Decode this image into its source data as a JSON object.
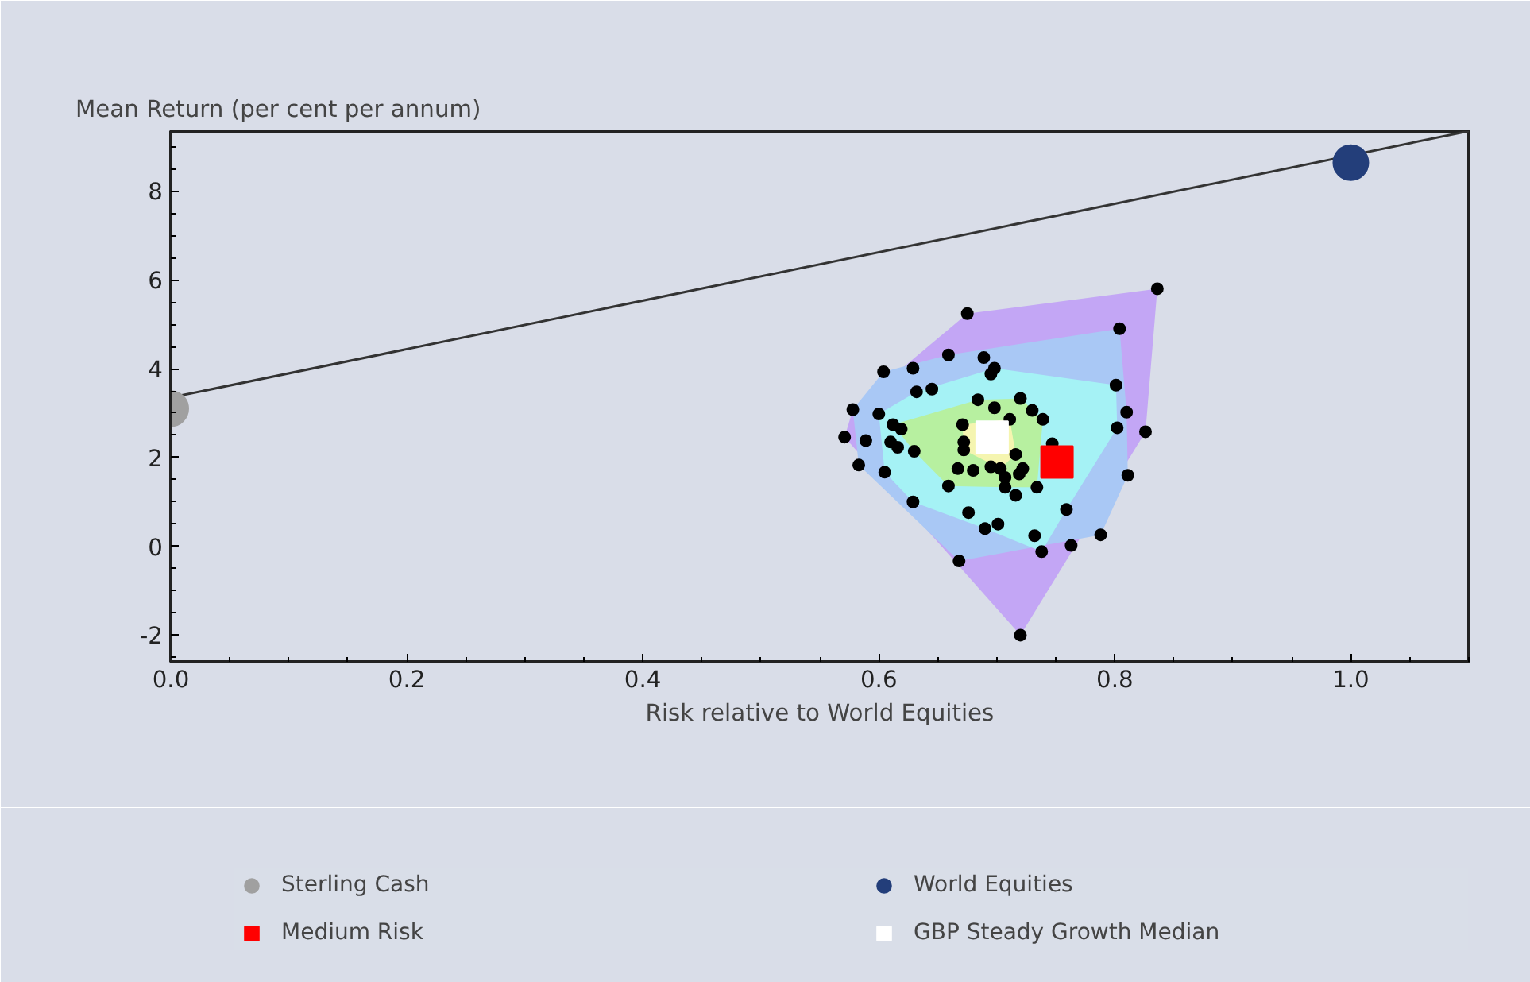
{
  "chart_data": {
    "type": "scatter",
    "xlabel": "Risk relative to World Equities",
    "ylabel": "Mean Return (per cent per annum)",
    "xlim": [
      0,
      1.1
    ],
    "ylim": [
      -2.6,
      9.35
    ],
    "xticks": [
      {
        "value": 0,
        "label": "0.0"
      },
      {
        "value": 0.2,
        "label": "0.2"
      },
      {
        "value": 0.4,
        "label": "0.4"
      },
      {
        "value": 0.6,
        "label": "0.6"
      },
      {
        "value": 0.8,
        "label": "0.8"
      },
      {
        "value": 1.0,
        "label": "1.0"
      }
    ],
    "yticks": [
      -2,
      0,
      2,
      4,
      6,
      8
    ],
    "grid": false,
    "legend": "bottom",
    "series": [
      {
        "type": "area",
        "color": "#c3a6f5",
        "x": [
          0.836,
          0.675,
          0.578,
          0.571,
          0.72,
          0.826
        ],
        "values": [
          5.8,
          5.24,
          3.08,
          2.46,
          -2.0,
          2.58
        ]
      },
      {
        "type": "area",
        "color": "#a9c8f5",
        "x": [
          0.804,
          0.659,
          0.604,
          0.578,
          0.583,
          0.668,
          0.788,
          0.811,
          0.81
        ],
        "values": [
          4.9,
          4.31,
          3.93,
          3.08,
          1.83,
          -0.33,
          0.26,
          1.6,
          3.02
        ]
      },
      {
        "type": "area",
        "color": "#a5f2f5",
        "x": [
          0.698,
          0.632,
          0.6,
          0.605,
          0.629,
          0.69,
          0.738,
          0.759,
          0.802,
          0.801
        ],
        "values": [
          4.01,
          3.48,
          2.98,
          1.67,
          1.0,
          0.4,
          -0.12,
          0.83,
          2.67,
          3.63
        ]
      },
      {
        "type": "area",
        "color": "#b7f0a0",
        "x": [
          0.684,
          0.72,
          0.739,
          0.734,
          0.707,
          0.659,
          0.63,
          0.612
        ],
        "values": [
          3.3,
          3.33,
          2.86,
          1.33,
          1.33,
          1.36,
          2.14,
          2.74
        ]
      },
      {
        "type": "area",
        "color": "#f5f5b0",
        "x": [
          0.671,
          0.711,
          0.716,
          0.703,
          0.672
        ],
        "values": [
          2.74,
          2.86,
          2.07,
          1.75,
          2.17
        ]
      },
      {
        "type": "line",
        "color": "#333333",
        "marker": "none",
        "x": [
          0,
          1.1
        ],
        "values": [
          3.35,
          9.35
        ]
      },
      {
        "type": "scatter",
        "color": "#000000",
        "marker": "circle",
        "x": [
          0.836,
          0.675,
          0.804,
          0.659,
          0.689,
          0.698,
          0.695,
          0.604,
          0.629,
          0.801,
          0.632,
          0.645,
          0.684,
          0.698,
          0.72,
          0.73,
          0.739,
          0.578,
          0.6,
          0.711,
          0.81,
          0.802,
          0.826,
          0.612,
          0.619,
          0.671,
          0.571,
          0.589,
          0.61,
          0.616,
          0.63,
          0.672,
          0.672,
          0.747,
          0.716,
          0.583,
          0.605,
          0.667,
          0.68,
          0.695,
          0.703,
          0.722,
          0.719,
          0.707,
          0.659,
          0.707,
          0.716,
          0.734,
          0.629,
          0.759,
          0.676,
          0.69,
          0.701,
          0.811,
          0.732,
          0.738,
          0.763,
          0.788,
          0.668,
          0.72
        ],
        "values": [
          5.8,
          5.24,
          4.9,
          4.31,
          4.25,
          4.01,
          3.88,
          3.93,
          4.01,
          3.63,
          3.48,
          3.54,
          3.3,
          3.12,
          3.33,
          3.06,
          2.86,
          3.08,
          2.98,
          2.86,
          3.02,
          2.67,
          2.58,
          2.74,
          2.64,
          2.74,
          2.46,
          2.38,
          2.35,
          2.23,
          2.14,
          2.35,
          2.17,
          2.31,
          2.07,
          1.83,
          1.67,
          1.75,
          1.71,
          1.79,
          1.75,
          1.75,
          1.63,
          1.55,
          1.36,
          1.33,
          1.15,
          1.33,
          1.0,
          0.83,
          0.76,
          0.4,
          0.5,
          1.6,
          0.24,
          -0.12,
          0.02,
          0.26,
          -0.33,
          -2.0
        ]
      },
      {
        "type": "scatter",
        "name": "Sterling Cash",
        "color": "#a0a0a0",
        "marker": "circle",
        "x": [
          0
        ],
        "values": [
          3.1
        ]
      },
      {
        "type": "scatter",
        "name": "Medium Risk",
        "color": "#ff0000",
        "marker": "square",
        "x": [
          0.751
        ],
        "values": [
          1.9
        ]
      },
      {
        "type": "scatter",
        "name": "World Equities",
        "color": "#233e7a",
        "marker": "circle",
        "x": [
          1.0
        ],
        "values": [
          8.64
        ]
      },
      {
        "type": "scatter",
        "name": "GBP Steady Growth Median",
        "color": "#ffffff",
        "marker": "square",
        "x": [
          0.696
        ],
        "values": [
          2.46
        ]
      }
    ]
  }
}
